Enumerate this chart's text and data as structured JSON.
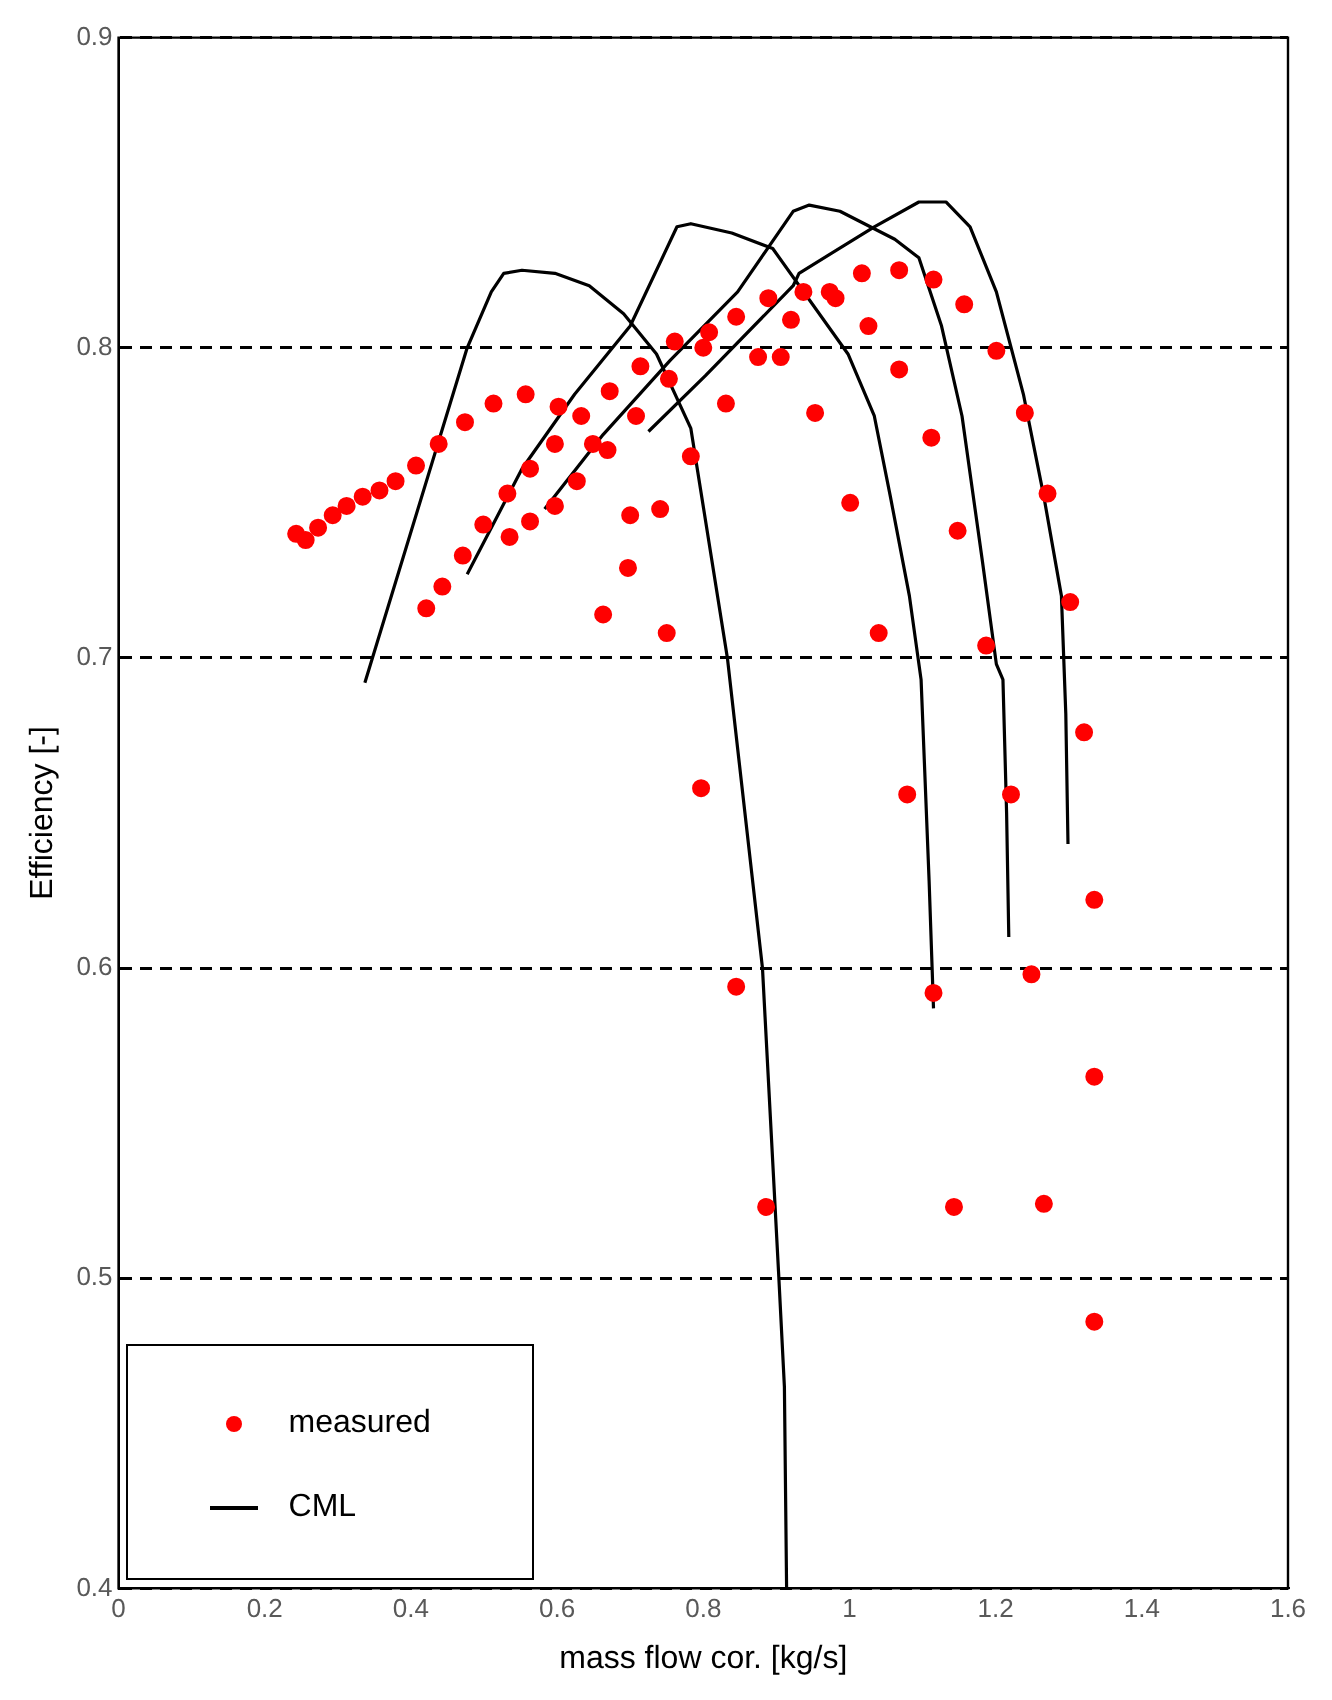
{
  "chart_data": {
    "type": "scatter",
    "xlabel": "mass flow cor. [kg/s]",
    "ylabel": "Efficiency [-]",
    "xlim": [
      0,
      1.6
    ],
    "ylim": [
      0.4,
      0.9
    ],
    "xticks": [
      0,
      0.2,
      0.4,
      0.6,
      0.8,
      1,
      1.2,
      1.4,
      1.6
    ],
    "yticks": [
      0.4,
      0.5,
      0.6,
      0.7,
      0.8,
      0.9
    ],
    "grid": "y",
    "legend": "bottom left",
    "series": [
      {
        "name": "measured",
        "type": "scatter",
        "color": "#ff0000",
        "marker": "circle",
        "x": [
          0.243,
          0.256,
          0.273,
          0.293,
          0.312,
          0.334,
          0.357,
          0.379,
          0.407,
          0.438,
          0.474,
          0.513,
          0.557,
          0.602,
          0.633,
          0.672,
          0.714,
          0.761,
          0.808,
          0.845,
          0.889,
          0.92,
          0.8,
          0.875,
          0.906,
          0.753,
          0.708,
          0.831,
          0.783,
          0.649,
          0.669,
          0.597,
          0.563,
          0.532,
          0.627,
          0.597,
          0.563,
          0.535,
          0.499,
          0.471,
          0.443,
          0.421,
          0.7,
          0.741,
          0.697,
          0.663,
          0.75,
          0.937,
          0.973,
          0.981,
          1.017,
          1.068,
          1.115,
          1.157,
          1.026,
          1.068,
          1.201,
          0.953,
          1.112,
          1.24,
          1.001,
          1.271,
          1.148,
          1.302,
          1.04,
          1.187,
          0.797,
          1.079,
          1.221,
          1.321,
          1.335,
          0.845,
          1.115,
          1.249,
          1.335,
          0.886,
          1.143,
          1.266,
          1.335
        ],
        "values": [
          0.74,
          0.738,
          0.742,
          0.746,
          0.749,
          0.752,
          0.754,
          0.757,
          0.762,
          0.769,
          0.776,
          0.782,
          0.785,
          0.781,
          0.778,
          0.786,
          0.794,
          0.802,
          0.805,
          0.81,
          0.816,
          0.809,
          0.8,
          0.797,
          0.797,
          0.79,
          0.778,
          0.782,
          0.765,
          0.769,
          0.767,
          0.769,
          0.761,
          0.753,
          0.757,
          0.749,
          0.744,
          0.739,
          0.743,
          0.733,
          0.723,
          0.716,
          0.746,
          0.748,
          0.729,
          0.714,
          0.708,
          0.818,
          0.818,
          0.816,
          0.824,
          0.825,
          0.822,
          0.814,
          0.807,
          0.793,
          0.799,
          0.779,
          0.771,
          0.779,
          0.75,
          0.753,
          0.741,
          0.718,
          0.708,
          0.704,
          0.658,
          0.656,
          0.656,
          0.676,
          0.622,
          0.594,
          0.592,
          0.598,
          0.565,
          0.523,
          0.523,
          0.524,
          0.486
        ]
      },
      {
        "name": "CML",
        "type": "line",
        "color": "#000000",
        "marker": "none",
        "line_style": "solid",
        "x": [
          0.337,
          0.477,
          0.51,
          0.527,
          0.552,
          0.597,
          0.644,
          0.691,
          0.736,
          0.783,
          0.833,
          0.881,
          0.903,
          0.911,
          0.914
        ],
        "values": [
          0.692,
          0.8,
          0.818,
          0.824,
          0.825,
          0.824,
          0.82,
          0.811,
          0.798,
          0.774,
          0.7,
          0.6,
          0.502,
          0.465,
          0.4
        ]
      },
      {
        "type": "line",
        "color": "#000000",
        "marker": "none",
        "line_style": "solid",
        "x": [
          0.477,
          0.552,
          0.624,
          0.7,
          0.764,
          0.783,
          0.839,
          0.895,
          0.998,
          1.034,
          1.056,
          1.082,
          1.098,
          1.109,
          1.115
        ],
        "values": [
          0.727,
          0.761,
          0.785,
          0.807,
          0.839,
          0.84,
          0.837,
          0.832,
          0.798,
          0.778,
          0.752,
          0.72,
          0.693,
          0.628,
          0.587
        ]
      },
      {
        "type": "line",
        "color": "#000000",
        "marker": "none",
        "line_style": "solid",
        "x": [
          0.583,
          0.663,
          0.755,
          0.847,
          0.923,
          0.945,
          0.987,
          1.062,
          1.095,
          1.126,
          1.154,
          1.182,
          1.201,
          1.21,
          1.215,
          1.218
        ],
        "values": [
          0.748,
          0.772,
          0.796,
          0.818,
          0.844,
          0.846,
          0.844,
          0.835,
          0.829,
          0.807,
          0.778,
          0.731,
          0.698,
          0.693,
          0.65,
          0.61
        ]
      },
      {
        "type": "line",
        "color": "#000000",
        "marker": "none",
        "line_style": "solid",
        "x": [
          0.725,
          0.803,
          0.923,
          0.931,
          1.034,
          1.095,
          1.132,
          1.165,
          1.201,
          1.238,
          1.266,
          1.29,
          1.296,
          1.299
        ],
        "values": [
          0.773,
          0.791,
          0.82,
          0.824,
          0.839,
          0.847,
          0.847,
          0.839,
          0.818,
          0.785,
          0.752,
          0.72,
          0.682,
          0.64
        ]
      }
    ]
  }
}
